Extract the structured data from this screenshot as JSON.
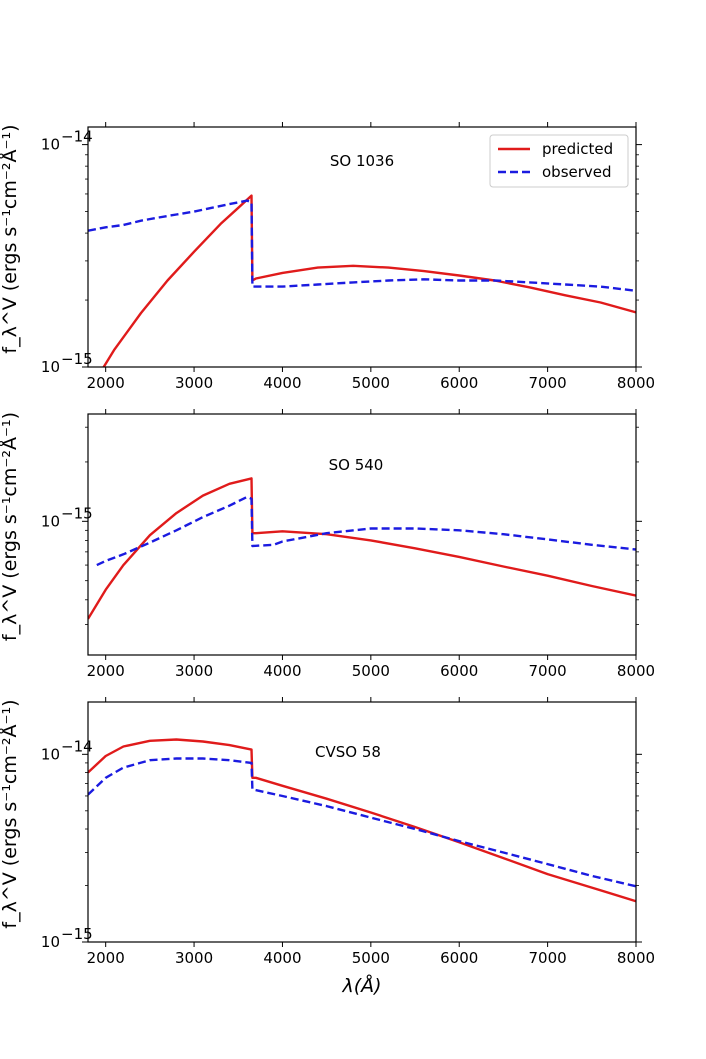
{
  "chart_data": [
    {
      "type": "line",
      "title": "SO 1036",
      "xlabel": "",
      "ylabel": "f_λ^V (ergs s⁻¹cm⁻²Å⁻¹)",
      "yscale": "log",
      "xlim": [
        1800,
        8000
      ],
      "ylim": [
        1e-15,
        1.2e-14
      ],
      "xticks": [
        2000,
        3000,
        4000,
        5000,
        6000,
        7000,
        8000
      ],
      "xtick_labels": [
        "2000",
        "3000",
        "4000",
        "5000",
        "6000",
        "7000",
        "8000"
      ],
      "yticks": [
        {
          "value": 1e-14,
          "mantissa": "10",
          "exponent": "−14"
        },
        {
          "value": 1e-15,
          "mantissa": "10",
          "exponent": "−15"
        }
      ],
      "legend": {
        "position": "top-right",
        "entries": [
          "predicted",
          "observed"
        ]
      },
      "series": [
        {
          "name": "predicted",
          "color": "#e01b1b",
          "style": "solid",
          "x": [
            1950,
            2100,
            2400,
            2700,
            3000,
            3300,
            3500,
            3650,
            3660,
            3700,
            4000,
            4400,
            4800,
            5200,
            5600,
            6000,
            6400,
            6800,
            7200,
            7600,
            8000
          ],
          "y": [
            9.6e-16,
            1.2e-15,
            1.75e-15,
            2.45e-15,
            3.3e-15,
            4.4e-15,
            5.2e-15,
            5.9e-15,
            2.45e-15,
            2.5e-15,
            2.65e-15,
            2.8e-15,
            2.85e-15,
            2.8e-15,
            2.7e-15,
            2.58e-15,
            2.45e-15,
            2.28e-15,
            2.1e-15,
            1.95e-15,
            1.76e-15
          ]
        },
        {
          "name": "observed",
          "color": "#1b1be0",
          "style": "dashed",
          "x": [
            1800,
            2000,
            2200,
            2400,
            2600,
            2800,
            3000,
            3200,
            3400,
            3600,
            3650,
            3660,
            4000,
            4400,
            4800,
            5200,
            5600,
            6000,
            6400,
            6800,
            7200,
            7600,
            8000
          ],
          "y": [
            4.1e-15,
            4.25e-15,
            4.35e-15,
            4.55e-15,
            4.7e-15,
            4.85e-15,
            5e-15,
            5.2e-15,
            5.4e-15,
            5.6e-15,
            5.5e-15,
            2.3e-15,
            2.3e-15,
            2.35e-15,
            2.4e-15,
            2.45e-15,
            2.48e-15,
            2.45e-15,
            2.45e-15,
            2.4e-15,
            2.35e-15,
            2.3e-15,
            2.2e-15
          ]
        }
      ]
    },
    {
      "type": "line",
      "title": "SO 540",
      "xlabel": "",
      "ylabel": "f_λ^V (ergs s⁻¹cm⁻²Å⁻¹)",
      "yscale": "log",
      "xlim": [
        1800,
        8000
      ],
      "ylim": [
        2.1e-16,
        3.5e-15
      ],
      "xticks": [
        2000,
        3000,
        4000,
        5000,
        6000,
        7000,
        8000
      ],
      "xtick_labels": [
        "2000",
        "3000",
        "4000",
        "5000",
        "6000",
        "7000",
        "8000"
      ],
      "yticks": [
        {
          "value": 1e-15,
          "mantissa": "10",
          "exponent": "−15"
        }
      ],
      "series": [
        {
          "name": "predicted",
          "color": "#e01b1b",
          "style": "solid",
          "x": [
            1800,
            2000,
            2200,
            2500,
            2800,
            3100,
            3400,
            3650,
            3660,
            3700,
            4000,
            4500,
            5000,
            5500,
            6000,
            6500,
            7000,
            7500,
            8000
          ],
          "y": [
            3.2e-16,
            4.5e-16,
            6e-16,
            8.5e-16,
            1.1e-15,
            1.35e-15,
            1.55e-15,
            1.65e-15,
            8.7e-16,
            8.7e-16,
            8.9e-16,
            8.6e-16,
            8e-16,
            7.3e-16,
            6.6e-16,
            5.9e-16,
            5.3e-16,
            4.7e-16,
            4.2e-16
          ]
        },
        {
          "name": "observed",
          "color": "#1b1be0",
          "style": "dashed",
          "x": [
            1900,
            2000,
            2200,
            2500,
            2800,
            3100,
            3400,
            3600,
            3650,
            3660,
            3900,
            4000,
            4500,
            5000,
            5500,
            6000,
            6500,
            7000,
            7500,
            8000
          ],
          "y": [
            6e-16,
            6.3e-16,
            6.8e-16,
            7.8e-16,
            9e-16,
            1.05e-15,
            1.2e-15,
            1.33e-15,
            1.3e-15,
            7.5e-16,
            7.6e-16,
            7.9e-16,
            8.7e-16,
            9.2e-16,
            9.2e-16,
            9e-16,
            8.6e-16,
            8.1e-16,
            7.6e-16,
            7.2e-16
          ]
        }
      ]
    },
    {
      "type": "line",
      "title": "CVSO 58",
      "xlabel": "λ(Å)",
      "ylabel": "f_λ^V (ergs s⁻¹cm⁻²Å⁻¹)",
      "yscale": "log",
      "xlim": [
        1800,
        8000
      ],
      "ylim": [
        1e-15,
        1.9e-14
      ],
      "xticks": [
        2000,
        3000,
        4000,
        5000,
        6000,
        7000,
        8000
      ],
      "xtick_labels": [
        "2000",
        "3000",
        "4000",
        "5000",
        "6000",
        "7000",
        "8000"
      ],
      "yticks": [
        {
          "value": 1e-14,
          "mantissa": "10",
          "exponent": "−14"
        },
        {
          "value": 1e-15,
          "mantissa": "10",
          "exponent": "−15"
        }
      ],
      "series": [
        {
          "name": "predicted",
          "color": "#e01b1b",
          "style": "solid",
          "x": [
            1800,
            2000,
            2200,
            2500,
            2800,
            3100,
            3400,
            3650,
            3660,
            3700,
            4000,
            4500,
            5000,
            5500,
            6000,
            6500,
            7000,
            7500,
            8000
          ],
          "y": [
            8e-15,
            9.8e-15,
            1.1e-14,
            1.18e-14,
            1.2e-14,
            1.17e-14,
            1.12e-14,
            1.06e-14,
            7.5e-15,
            7.5e-15,
            6.8e-15,
            5.8e-15,
            4.9e-15,
            4.1e-15,
            3.4e-15,
            2.8e-15,
            2.3e-15,
            1.95e-15,
            1.65e-15
          ]
        },
        {
          "name": "observed",
          "color": "#1b1be0",
          "style": "dashed",
          "x": [
            1800,
            2000,
            2200,
            2500,
            2800,
            3100,
            3400,
            3650,
            3660,
            4000,
            4500,
            5000,
            5500,
            6000,
            6500,
            7000,
            7500,
            8000
          ],
          "y": [
            6.1e-15,
            7.5e-15,
            8.5e-15,
            9.3e-15,
            9.5e-15,
            9.5e-15,
            9.3e-15,
            9e-15,
            6.5e-15,
            6e-15,
            5.3e-15,
            4.6e-15,
            4e-15,
            3.45e-15,
            3e-15,
            2.6e-15,
            2.25e-15,
            1.98e-15
          ]
        }
      ]
    }
  ]
}
